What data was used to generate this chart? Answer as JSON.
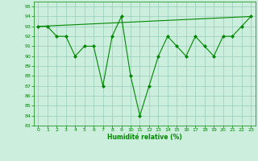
{
  "title": "",
  "xlabel": "Humidité relative (%)",
  "ylabel": "",
  "bg_color": "#cceedd",
  "grid_color": "#99ccbb",
  "line_color": "#008800",
  "marker_color": "#008800",
  "xlim": [
    -0.5,
    23.5
  ],
  "ylim": [
    83,
    95.5
  ],
  "yticks": [
    83,
    84,
    85,
    86,
    87,
    88,
    89,
    90,
    91,
    92,
    93,
    94,
    95
  ],
  "xticks": [
    0,
    1,
    2,
    3,
    4,
    5,
    6,
    7,
    8,
    9,
    10,
    11,
    12,
    13,
    14,
    15,
    16,
    17,
    18,
    19,
    20,
    21,
    22,
    23
  ],
  "main_line": {
    "x": [
      0,
      1,
      2,
      3,
      4,
      5,
      6,
      7,
      8,
      9,
      10,
      11,
      12,
      13,
      14,
      15,
      16,
      17,
      18,
      19,
      20,
      21,
      22,
      23
    ],
    "y": [
      93,
      93,
      92,
      92,
      90,
      91,
      91,
      87,
      92,
      94,
      88,
      84,
      87,
      90,
      92,
      91,
      90,
      92,
      91,
      90,
      92,
      92,
      93,
      94
    ]
  },
  "trend_line": {
    "x": [
      0,
      23
    ],
    "y": [
      93.0,
      94.0
    ]
  }
}
